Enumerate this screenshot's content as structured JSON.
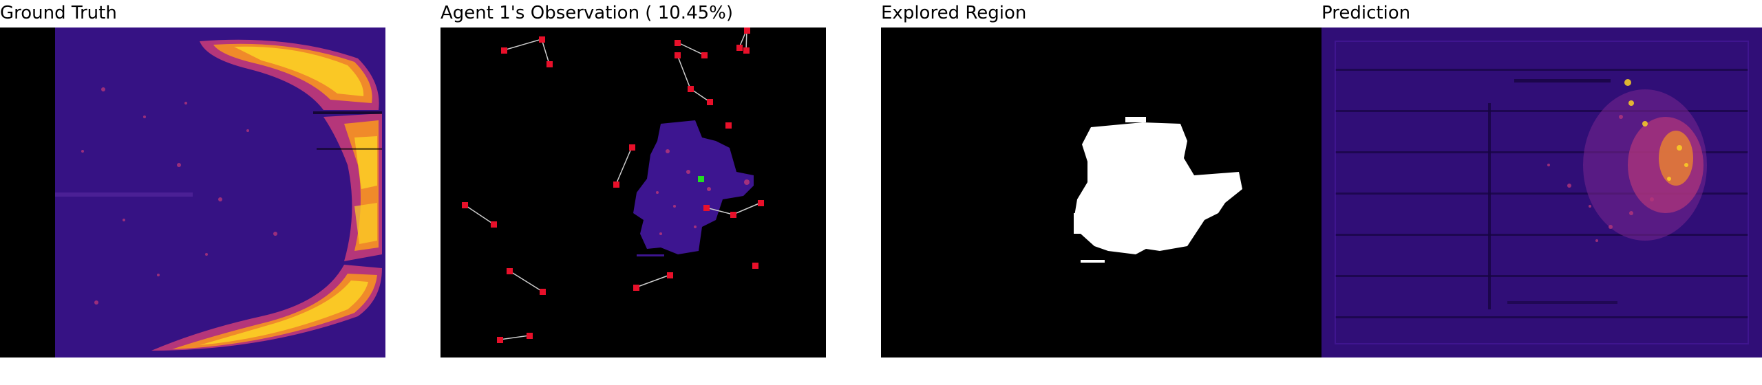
{
  "panels": {
    "ground_truth": {
      "title": "Ground Truth"
    },
    "observation": {
      "title": "Agent 1's Observation ( 10.45%)"
    },
    "explored": {
      "title": "Explored Region"
    },
    "prediction": {
      "title": "Prediction"
    }
  },
  "colors": {
    "background": "#000000",
    "heat_low": "#3b0f8c",
    "heat_mid": "#b5367a",
    "heat_high": "#fcd225",
    "agent_marker": "#e8102a",
    "self_marker": "#22dd22",
    "explored": "#ffffff"
  }
}
